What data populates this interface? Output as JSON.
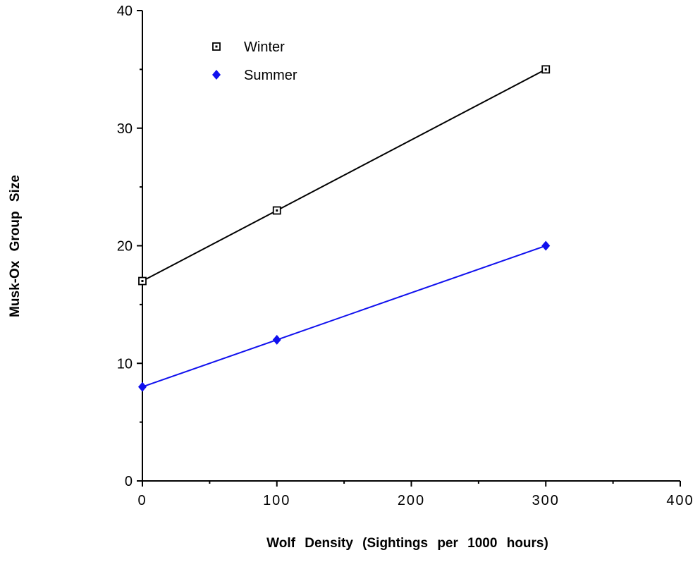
{
  "chart_data": {
    "type": "line",
    "xlabel": "Wolf  Density  (Sightings  per  1000  hours)",
    "ylabel": "Musk-Ox  Group  Size",
    "xlim": [
      0,
      400
    ],
    "ylim": [
      0,
      40
    ],
    "xticks": [
      0,
      100,
      200,
      300,
      400
    ],
    "yticks": [
      0,
      10,
      20,
      30,
      40
    ],
    "grid": false,
    "legend_position": "top-left",
    "series": [
      {
        "name": "Winter",
        "marker": "open-square",
        "color": "#000000",
        "x": [
          0,
          100,
          300
        ],
        "y": [
          17,
          23,
          35
        ]
      },
      {
        "name": "Summer",
        "marker": "filled-diamond",
        "color": "#1010ee",
        "x": [
          0,
          100,
          300
        ],
        "y": [
          8,
          12,
          20
        ]
      }
    ]
  }
}
